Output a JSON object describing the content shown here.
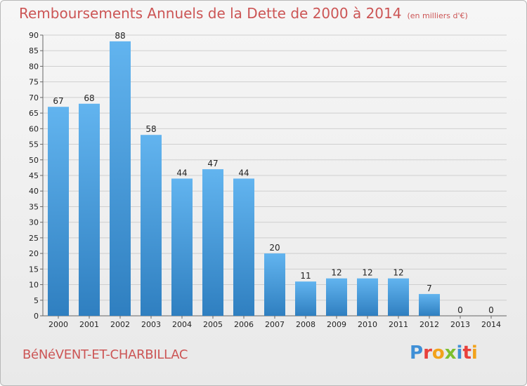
{
  "header": {
    "title": "Remboursements Annuels de la Dette de 2000 à 2014",
    "unit": "(en milliers d'€)"
  },
  "footer": {
    "city": "BéNéVENT-ET-CHARBILLAC",
    "logo_letters": [
      "P",
      "r",
      "o",
      "x",
      "i",
      "t",
      "i"
    ],
    "logo_colors": [
      "#3f8fd6",
      "#e8413c",
      "#f2a21b",
      "#7cbf2f",
      "#3f8fd6",
      "#e8413c",
      "#f2a21b"
    ]
  },
  "colors": {
    "bar_top": "#62b4ef",
    "bar_bottom": "#2f7fc0",
    "title": "#cc5555",
    "grid": "#cfcfcf"
  },
  "chart_data": {
    "type": "bar",
    "title": "Remboursements Annuels de la Dette de 2000 à 2014",
    "subtitle": "(en milliers d'€)",
    "categories": [
      "2000",
      "2001",
      "2002",
      "2003",
      "2004",
      "2005",
      "2006",
      "2007",
      "2008",
      "2009",
      "2010",
      "2011",
      "2012",
      "2013",
      "2014"
    ],
    "values": [
      67,
      68,
      88,
      58,
      44,
      47,
      44,
      20,
      11,
      12,
      12,
      12,
      7,
      0,
      0
    ],
    "ylim": [
      0,
      90
    ],
    "yticks": [
      0,
      5,
      10,
      15,
      20,
      25,
      30,
      35,
      40,
      45,
      50,
      55,
      60,
      65,
      70,
      75,
      80,
      85,
      90
    ],
    "grid": true,
    "data_labels": true
  }
}
